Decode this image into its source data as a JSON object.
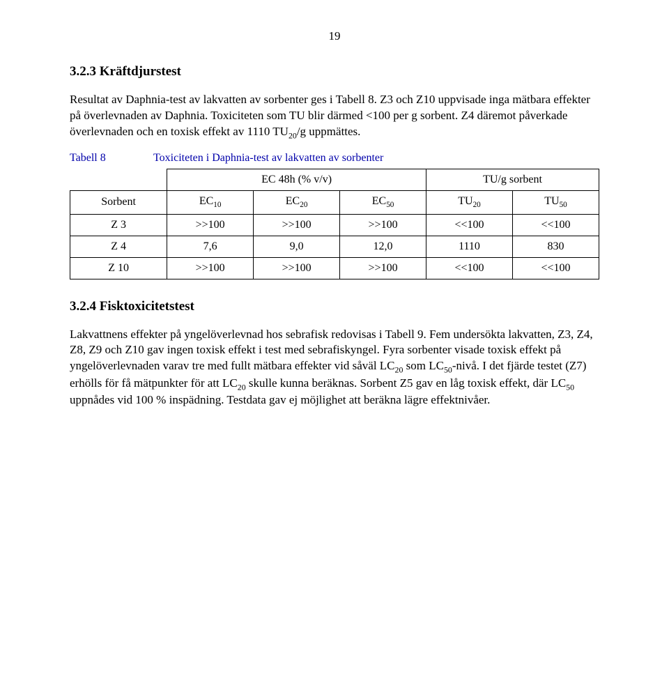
{
  "page_number": "19",
  "section1": {
    "heading": "3.2.3 Kräftdjurstest",
    "p1_a": "Resultat av Daphnia-test av lakvatten av sorbenter ges i Tabell 8. Z3 och Z10 uppvisade inga mätbara effekter på överlevnaden av Daphnia. Toxiciteten som TU blir därmed <100 per g sorbent. Z4 däremot påverkade överlevnaden och en toxisk effekt av 1110 TU",
    "p1_sub": "20",
    "p1_b": "/g uppmättes."
  },
  "table": {
    "caption_label": "Tabell 8",
    "caption_text": "Toxiciteten i Daphnia-test av lakvatten av sorbenter",
    "group_h1": "EC 48h (% v/v)",
    "group_h2": "TU/g sorbent",
    "col_h0": "Sorbent",
    "col_h1_a": "EC",
    "col_h1_sub": "10",
    "col_h2_a": "EC",
    "col_h2_sub": "20",
    "col_h3_a": "EC",
    "col_h3_sub": "50",
    "col_h4_a": "TU",
    "col_h4_sub": "20",
    "col_h5_a": "TU",
    "col_h5_sub": "50",
    "r1": {
      "label": "Z 3",
      "c1": ">>100",
      "c2": ">>100",
      "c3": ">>100",
      "c4": "<<100",
      "c5": "<<100"
    },
    "r2": {
      "label": "Z 4",
      "c1": "7,6",
      "c2": "9,0",
      "c3": "12,0",
      "c4": "1110",
      "c5": "830"
    },
    "r3": {
      "label": "Z 10",
      "c1": ">>100",
      "c2": ">>100",
      "c3": ">>100",
      "c4": "<<100",
      "c5": "<<100"
    }
  },
  "section2": {
    "heading": "3.2.4 Fisktoxicitetstest",
    "p1_a": "Lakvattnens effekter på yngelöverlevnad hos sebrafisk redovisas i Tabell 9. Fem undersökta lakvatten, Z3, Z4, Z8, Z9 och Z10 gav ingen toxisk effekt i test med sebrafiskyngel. Fyra sorbenter visade toxisk effekt på yngelöverlevnaden varav tre med fullt mätbara effekter vid såväl LC",
    "p1_s1": "20",
    "p1_b": " som LC",
    "p1_s2": "50",
    "p1_c": "-nivå. I det fjärde testet (Z7) erhölls för få mätpunkter för att LC",
    "p1_s3": "20",
    "p1_d": " skulle kunna beräknas. Sorbent Z5 gav en låg toxisk effekt, där LC",
    "p1_s4": "50",
    "p1_e": " uppnådes vid 100 % inspädning. Testdata gav ej möjlighet att beräkna lägre effektnivåer."
  }
}
